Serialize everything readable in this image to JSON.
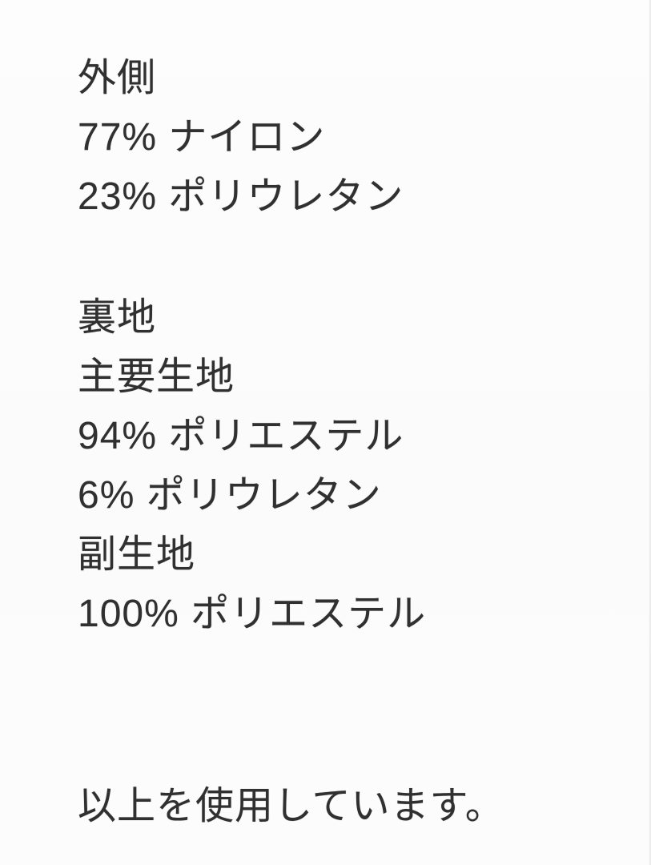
{
  "colors": {
    "text": "#303030",
    "background": "#fcfcfc",
    "edge_line": "#ececec"
  },
  "composition": {
    "outer": {
      "heading": "外側",
      "materials": [
        "77% ナイロン",
        "23% ポリウレタン"
      ]
    },
    "lining": {
      "heading": "裏地",
      "main_fabric": {
        "heading": "主要生地",
        "materials": [
          "94% ポリエステル",
          "6% ポリウレタン"
        ]
      },
      "sub_fabric": {
        "heading": "副生地",
        "materials": [
          "100% ポリエステル"
        ]
      }
    },
    "closing_note": "以上を使用しています。"
  }
}
